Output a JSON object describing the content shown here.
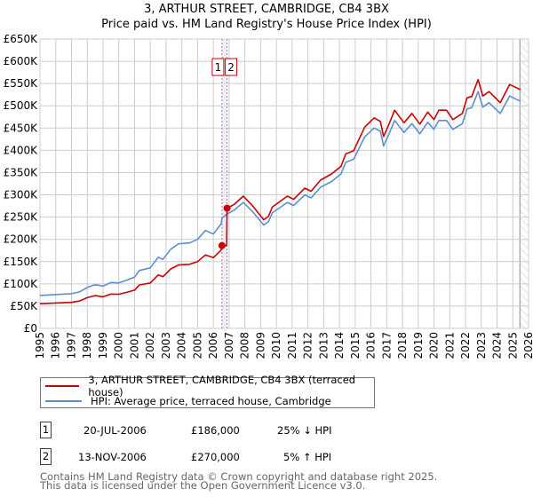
{
  "chart_data": {
    "type": "line",
    "title": "3, ARTHUR STREET, CAMBRIDGE, CB4 3BX",
    "subtitle": "Price paid vs. HM Land Registry's House Price Index (HPI)",
    "xlim": [
      1995,
      2026
    ],
    "ylim": [
      0,
      650000
    ],
    "x_ticks": [
      "1995",
      "1996",
      "1997",
      "1998",
      "1999",
      "2000",
      "2001",
      "2002",
      "2003",
      "2004",
      "2005",
      "2006",
      "2007",
      "2008",
      "2009",
      "2010",
      "2011",
      "2012",
      "2013",
      "2014",
      "2015",
      "2016",
      "2017",
      "2018",
      "2019",
      "2020",
      "2021",
      "2022",
      "2023",
      "2024",
      "2025",
      "2026"
    ],
    "y_ticks": [
      {
        "value": 0,
        "label": "£0"
      },
      {
        "value": 50000,
        "label": "£50K"
      },
      {
        "value": 100000,
        "label": "£100K"
      },
      {
        "value": 150000,
        "label": "£150K"
      },
      {
        "value": 200000,
        "label": "£200K"
      },
      {
        "value": 250000,
        "label": "£250K"
      },
      {
        "value": 300000,
        "label": "£300K"
      },
      {
        "value": 350000,
        "label": "£350K"
      },
      {
        "value": 400000,
        "label": "£400K"
      },
      {
        "value": 450000,
        "label": "£450K"
      },
      {
        "value": 500000,
        "label": "£500K"
      },
      {
        "value": 550000,
        "label": "£550K"
      },
      {
        "value": 600000,
        "label": "£600K"
      },
      {
        "value": 650000,
        "label": "£650K"
      }
    ],
    "grid": true,
    "future_hatch_from": 2025.45,
    "series": [
      {
        "name": "3, ARTHUR STREET, CAMBRIDGE, CB4 3BX (terraced house)",
        "color": "#cc0000",
        "points": [
          [
            1995,
            55.5
          ],
          [
            1996,
            57
          ],
          [
            1997,
            58.5
          ],
          [
            1997.5,
            61.5
          ],
          [
            1998,
            69
          ],
          [
            1998.5,
            73.5
          ],
          [
            1999,
            71
          ],
          [
            1999.5,
            77
          ],
          [
            2000,
            76.5
          ],
          [
            2000.5,
            81
          ],
          [
            2001,
            86
          ],
          [
            2001.3,
            97.5
          ],
          [
            2002,
            102
          ],
          [
            2002.5,
            120
          ],
          [
            2002.8,
            116
          ],
          [
            2003.3,
            133.5
          ],
          [
            2003.8,
            142.5
          ],
          [
            2004.5,
            144
          ],
          [
            2005,
            150
          ],
          [
            2005.5,
            165
          ],
          [
            2006,
            159
          ],
          [
            2006.5,
            176
          ],
          [
            2006.55,
            186
          ],
          [
            2006.85,
            186
          ],
          [
            2006.87,
            270
          ],
          [
            2007.3,
            278
          ],
          [
            2007.9,
            297
          ],
          [
            2008.5,
            275
          ],
          [
            2009.2,
            244
          ],
          [
            2009.5,
            252
          ],
          [
            2009.75,
            273
          ],
          [
            2010.7,
            297
          ],
          [
            2011.1,
            290
          ],
          [
            2011.8,
            315
          ],
          [
            2012.2,
            308
          ],
          [
            2012.8,
            333
          ],
          [
            2013.5,
            347
          ],
          [
            2014.1,
            364
          ],
          [
            2014.4,
            392
          ],
          [
            2014.9,
            399
          ],
          [
            2015.6,
            452
          ],
          [
            2016.2,
            473
          ],
          [
            2016.6,
            465
          ],
          [
            2016.8,
            431
          ],
          [
            2017.1,
            455
          ],
          [
            2017.5,
            490
          ],
          [
            2018.1,
            462
          ],
          [
            2018.6,
            483
          ],
          [
            2019.1,
            459
          ],
          [
            2019.6,
            486
          ],
          [
            2020,
            469
          ],
          [
            2020.3,
            490
          ],
          [
            2020.8,
            490
          ],
          [
            2021.2,
            469
          ],
          [
            2021.8,
            483
          ],
          [
            2022.1,
            518
          ],
          [
            2022.4,
            521
          ],
          [
            2022.8,
            559
          ],
          [
            2023.1,
            522
          ],
          [
            2023.5,
            532
          ],
          [
            2024.2,
            507
          ],
          [
            2024.8,
            548
          ],
          [
            2025.5,
            536
          ]
        ]
      },
      {
        "name": "HPI: Average price, terraced house, Cambridge",
        "color": "#5b8fd0",
        "points": [
          [
            1995,
            74
          ],
          [
            1996,
            76
          ],
          [
            1997,
            78
          ],
          [
            1997.5,
            82
          ],
          [
            1998,
            92
          ],
          [
            1998.5,
            98
          ],
          [
            1999,
            95
          ],
          [
            1999.5,
            103
          ],
          [
            2000,
            102
          ],
          [
            2000.5,
            108
          ],
          [
            2001,
            115
          ],
          [
            2001.3,
            130
          ],
          [
            2002,
            136
          ],
          [
            2002.5,
            160
          ],
          [
            2002.8,
            155
          ],
          [
            2003.3,
            178
          ],
          [
            2003.8,
            190
          ],
          [
            2004.5,
            192
          ],
          [
            2005,
            200
          ],
          [
            2005.5,
            220
          ],
          [
            2006,
            212
          ],
          [
            2006.5,
            235
          ],
          [
            2006.55,
            248
          ],
          [
            2006.87,
            257
          ],
          [
            2007.3,
            265
          ],
          [
            2007.9,
            283
          ],
          [
            2008.5,
            262
          ],
          [
            2009.2,
            232
          ],
          [
            2009.5,
            240
          ],
          [
            2009.75,
            260
          ],
          [
            2010.7,
            283
          ],
          [
            2011.1,
            276
          ],
          [
            2011.8,
            300
          ],
          [
            2012.2,
            293
          ],
          [
            2012.8,
            317
          ],
          [
            2013.5,
            330
          ],
          [
            2014.1,
            347
          ],
          [
            2014.4,
            373
          ],
          [
            2014.9,
            380
          ],
          [
            2015.6,
            430
          ],
          [
            2016.2,
            450
          ],
          [
            2016.6,
            443
          ],
          [
            2016.8,
            410
          ],
          [
            2017.1,
            433
          ],
          [
            2017.5,
            467
          ],
          [
            2018.1,
            440
          ],
          [
            2018.6,
            460
          ],
          [
            2019.1,
            437
          ],
          [
            2019.6,
            463
          ],
          [
            2020,
            447
          ],
          [
            2020.3,
            467
          ],
          [
            2020.8,
            467
          ],
          [
            2021.2,
            447
          ],
          [
            2021.8,
            460
          ],
          [
            2022.1,
            493
          ],
          [
            2022.4,
            496
          ],
          [
            2022.8,
            532
          ],
          [
            2023.1,
            497
          ],
          [
            2023.5,
            507
          ],
          [
            2024.2,
            483
          ],
          [
            2024.8,
            522
          ],
          [
            2025.5,
            510
          ]
        ]
      }
    ],
    "units_note": "series values in £ thousands",
    "sales": [
      {
        "id": "1",
        "year": 2006.55,
        "value": 186
      },
      {
        "id": "2",
        "year": 2006.87,
        "value": 270
      }
    ]
  },
  "legend": {
    "property": "3, ARTHUR STREET, CAMBRIDGE, CB4 3BX (terraced house)",
    "hpi": "HPI: Average price, terraced house, Cambridge"
  },
  "transactions": [
    {
      "id": "1",
      "date": "20-JUL-2006",
      "price": "£186,000",
      "delta": "25% ↓ HPI"
    },
    {
      "id": "2",
      "date": "13-NOV-2006",
      "price": "£270,000",
      "delta": "5% ↑ HPI"
    }
  ],
  "footer": {
    "line1": "Contains HM Land Registry data © Crown copyright and database right 2025.",
    "line2": "This data is licensed under the Open Government Licence v3.0."
  }
}
